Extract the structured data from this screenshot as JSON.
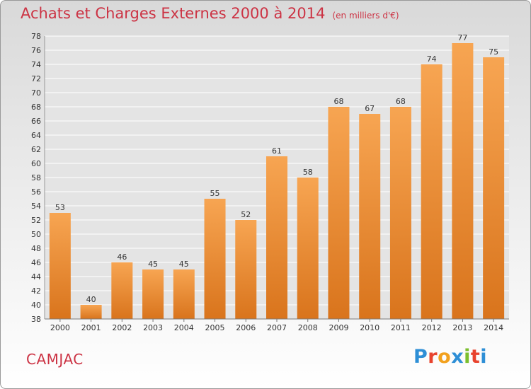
{
  "header": {
    "title": "Achats et Charges Externes 2000 à 2014",
    "subtitle": "(en milliers d'€)"
  },
  "footer": {
    "city": "CAMJAC",
    "logo_letters": [
      "P",
      "r",
      "o",
      "x",
      "i",
      "t",
      "i"
    ]
  },
  "colors": {
    "bar_top": "#f7a552",
    "bar_bottom": "#d9741c",
    "title": "#cc3344",
    "grid": "#ffffff"
  },
  "chart_data": {
    "type": "bar",
    "title": "Achats et Charges Externes 2000 à 2014",
    "subtitle": "(en milliers d'€)",
    "xlabel": "",
    "ylabel": "",
    "categories": [
      "2000",
      "2001",
      "2002",
      "2003",
      "2004",
      "2005",
      "2006",
      "2007",
      "2008",
      "2009",
      "2010",
      "2011",
      "2012",
      "2013",
      "2014"
    ],
    "values": [
      53,
      40,
      46,
      45,
      45,
      55,
      52,
      61,
      58,
      68,
      67,
      68,
      74,
      77,
      75
    ],
    "ylim": [
      38,
      78
    ],
    "yticks": [
      38,
      40,
      42,
      44,
      46,
      48,
      50,
      52,
      54,
      56,
      58,
      60,
      62,
      64,
      66,
      68,
      70,
      72,
      74,
      76,
      78
    ],
    "grid": true,
    "data_labels": true,
    "legend": "none"
  }
}
